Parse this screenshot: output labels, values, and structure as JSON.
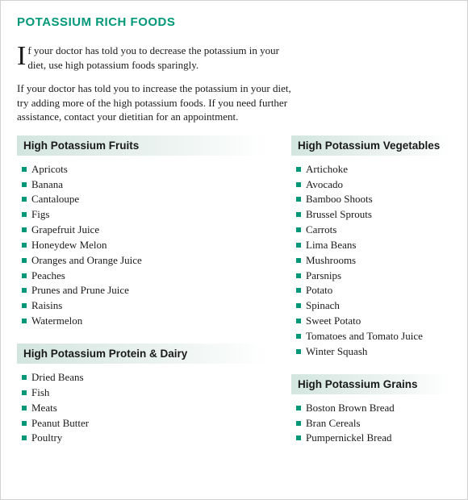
{
  "colors": {
    "accent": "#009878",
    "bullet": "#009878",
    "text": "#1a1a1a",
    "header_bg_start": "#d3e5df"
  },
  "title": "POTASSIUM RICH FOODS",
  "intro": {
    "dropcap": "I",
    "p1": "f your doctor has told you to decrease the potassium in your diet, use high potassium foods sparingly.",
    "p2": "If your doctor has told you to increase the potassium in your diet, try adding more of the high potassium foods. If you need further assistance, contact your dietitian for an appointment."
  },
  "sections": {
    "fruits": {
      "heading": "High Potassium Fruits",
      "items": [
        "Apricots",
        "Banana",
        "Cantaloupe",
        "Figs",
        "Grapefruit Juice",
        "Honeydew Melon",
        "Oranges and Orange Juice",
        "Peaches",
        "Prunes and Prune Juice",
        "Raisins",
        "Watermelon"
      ]
    },
    "vegetables": {
      "heading": "High Potassium Vegetables",
      "items": [
        "Artichoke",
        "Avocado",
        "Bamboo Shoots",
        "Brussel Sprouts",
        "Carrots",
        "Lima Beans",
        "Mushrooms",
        "Parsnips",
        "Potato",
        "Spinach",
        "Sweet Potato",
        "Tomatoes and Tomato Juice",
        "Winter Squash"
      ]
    },
    "protein": {
      "heading": "High Potassium Protein & Dairy",
      "items": [
        "Dried Beans",
        "Fish",
        "Meats",
        "Peanut Butter",
        "Poultry"
      ]
    },
    "grains": {
      "heading": "High Potassium Grains",
      "items": [
        "Boston Brown Bread",
        "Bran Cereals",
        "Pumpernickel Bread"
      ]
    }
  }
}
